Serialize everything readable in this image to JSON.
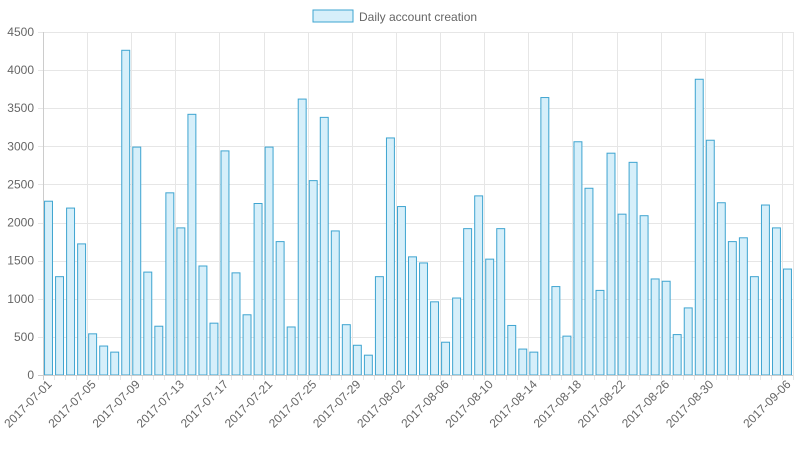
{
  "colors": {
    "bar_fill": "#d6effa",
    "bar_stroke": "#3ea4d0",
    "grid": "#e6e6e6",
    "axis": "#cccccc",
    "text": "#666666"
  },
  "chart_data": {
    "type": "bar",
    "legend": {
      "position": "top",
      "labels": [
        "Daily account creation"
      ]
    },
    "grid": true,
    "ylim": [
      0,
      4500
    ],
    "yticks": [
      0,
      500,
      1000,
      1500,
      2000,
      2500,
      3000,
      3500,
      4000,
      4500
    ],
    "x_tick_labels": [
      "2017-07-01",
      "2017-07-05",
      "2017-07-09",
      "2017-07-13",
      "2017-07-17",
      "2017-07-21",
      "2017-07-25",
      "2017-07-29",
      "2017-08-02",
      "2017-08-06",
      "2017-08-10",
      "2017-08-14",
      "2017-08-18",
      "2017-08-22",
      "2017-08-26",
      "2017-08-30",
      "2017-09-06"
    ],
    "categories": [
      "2017-07-01",
      "2017-07-02",
      "2017-07-03",
      "2017-07-04",
      "2017-07-05",
      "2017-07-06",
      "2017-07-07",
      "2017-07-08",
      "2017-07-09",
      "2017-07-10",
      "2017-07-11",
      "2017-07-12",
      "2017-07-13",
      "2017-07-14",
      "2017-07-15",
      "2017-07-16",
      "2017-07-17",
      "2017-07-18",
      "2017-07-19",
      "2017-07-20",
      "2017-07-21",
      "2017-07-22",
      "2017-07-23",
      "2017-07-24",
      "2017-07-25",
      "2017-07-26",
      "2017-07-27",
      "2017-07-28",
      "2017-07-29",
      "2017-07-30",
      "2017-07-31",
      "2017-08-01",
      "2017-08-02",
      "2017-08-03",
      "2017-08-04",
      "2017-08-05",
      "2017-08-06",
      "2017-08-07",
      "2017-08-08",
      "2017-08-09",
      "2017-08-10",
      "2017-08-11",
      "2017-08-12",
      "2017-08-13",
      "2017-08-14",
      "2017-08-15",
      "2017-08-16",
      "2017-08-17",
      "2017-08-18",
      "2017-08-19",
      "2017-08-20",
      "2017-08-21",
      "2017-08-22",
      "2017-08-23",
      "2017-08-24",
      "2017-08-25",
      "2017-08-26",
      "2017-08-27",
      "2017-08-28",
      "2017-08-29",
      "2017-08-30",
      "2017-08-31",
      "2017-09-01",
      "2017-09-02",
      "2017-09-03",
      "2017-09-04",
      "2017-09-05",
      "2017-09-06"
    ],
    "series": [
      {
        "name": "Daily account creation",
        "values": [
          2280,
          1290,
          2190,
          1720,
          540,
          380,
          300,
          4260,
          2990,
          1350,
          640,
          2390,
          1930,
          3420,
          1430,
          680,
          2940,
          1340,
          790,
          2250,
          2990,
          1750,
          630,
          3620,
          2550,
          3380,
          1890,
          660,
          390,
          260,
          1290,
          3110,
          2210,
          1550,
          1470,
          960,
          430,
          1010,
          1920,
          2350,
          1520,
          1920,
          650,
          340,
          300,
          3640,
          1160,
          510,
          3060,
          2450,
          1110,
          2910,
          2110,
          2790,
          2090,
          1260,
          1230,
          530,
          880,
          3880,
          3080,
          2260,
          1750,
          1800,
          1290,
          2230,
          1930,
          1390
        ]
      }
    ]
  }
}
